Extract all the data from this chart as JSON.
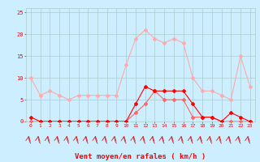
{
  "hours": [
    0,
    1,
    2,
    3,
    4,
    5,
    6,
    7,
    8,
    9,
    10,
    11,
    12,
    13,
    14,
    15,
    16,
    17,
    18,
    19,
    20,
    21,
    22,
    23
  ],
  "wind_gust": [
    10,
    6,
    7,
    6,
    5,
    6,
    6,
    6,
    6,
    6,
    13,
    19,
    21,
    19,
    18,
    19,
    18,
    10,
    7,
    7,
    6,
    5,
    15,
    8
  ],
  "wind_avg": [
    1,
    0,
    0,
    0,
    0,
    0,
    0,
    0,
    0,
    0,
    0,
    4,
    8,
    7,
    7,
    7,
    7,
    4,
    1,
    1,
    0,
    2,
    1,
    0
  ],
  "wind_min": [
    0,
    0,
    0,
    0,
    0,
    0,
    0,
    0,
    0,
    0,
    0,
    2,
    4,
    7,
    5,
    5,
    5,
    1,
    1,
    1,
    0,
    0,
    0,
    0
  ],
  "background_color": "#cceeff",
  "grid_color": "#aacccc",
  "line_color_gust": "#ffaaaa",
  "line_color_avg": "#ff0000",
  "line_color_min": "#ff6666",
  "axis_color": "#ff0000",
  "xlabel": "Vent moyen/en rafales ( km/h )",
  "yticks": [
    0,
    5,
    10,
    15,
    20,
    25
  ],
  "ylim": [
    0,
    26
  ],
  "xlim": [
    -0.5,
    23.5
  ]
}
